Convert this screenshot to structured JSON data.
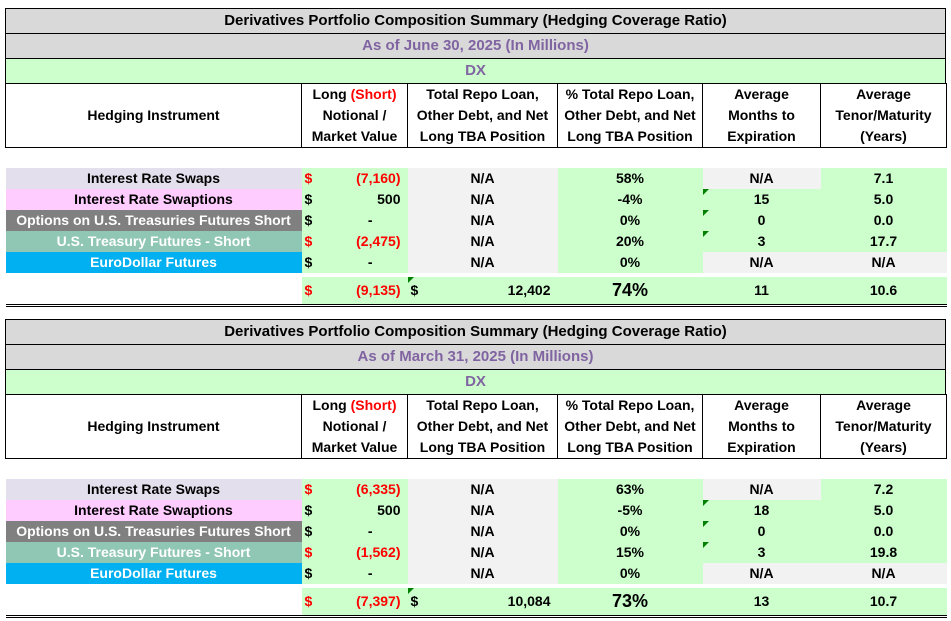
{
  "tables": [
    {
      "title": "Derivatives Portfolio Composition Summary (Hedging Coverage Ratio)",
      "as_of": "As of June 30, 2025 (In Millions)",
      "entity": "DX",
      "headers": {
        "instrument": "Hedging Instrument",
        "long_short_a": "Long ",
        "long_short_b": "(Short)",
        "notional_line2": "Notional /",
        "notional_line3": "Market Value",
        "repo_line1": "Total Repo Loan,",
        "repo_line2": "Other Debt, and Net",
        "repo_line3": "Long  TBA Position",
        "pct_line1": "% Total Repo Loan,",
        "pct_line2": "Other Debt, and Net",
        "pct_line3": "Long TBA Position",
        "months_line1": "Average",
        "months_line2": "Months to",
        "months_line3": "Expiration",
        "tenor_line1": "Average",
        "tenor_line2": "Tenor/Maturity",
        "tenor_line3": "(Years)"
      },
      "rows": [
        {
          "instrument": "Interest Rate Swaps",
          "currency": "$",
          "amount": "(7,160)",
          "repo": "N/A",
          "pct": "58%",
          "months": "N/A",
          "tenor": "7.1"
        },
        {
          "instrument": "Interest Rate Swaptions",
          "currency": "$",
          "amount": "500",
          "repo": "N/A",
          "pct": "-4%",
          "months": "15",
          "tenor": "5.0"
        },
        {
          "instrument": "Options on U.S. Treasuries Futures Short",
          "currency": "$",
          "amount": "-",
          "repo": "N/A",
          "pct": "0%",
          "months": "0",
          "tenor": "0.0"
        },
        {
          "instrument": "U.S. Treasury Futures - Short",
          "currency": "$",
          "amount": "(2,475)",
          "repo": "N/A",
          "pct": "20%",
          "months": "3",
          "tenor": "17.7"
        },
        {
          "instrument": "EuroDollar Futures",
          "currency": "$",
          "amount": "-",
          "repo": "N/A",
          "pct": "0%",
          "months": "N/A",
          "tenor": "N/A"
        }
      ],
      "total": {
        "currency": "$",
        "amount": "(9,135)",
        "repo_currency": "$",
        "repo": "12,402",
        "pct": "74%",
        "months": "11",
        "tenor": "10.6"
      }
    },
    {
      "title": "Derivatives Portfolio Composition Summary (Hedging Coverage Ratio)",
      "as_of": "As of March 31, 2025 (In Millions)",
      "entity": "DX",
      "headers": {
        "instrument": "Hedging Instrument",
        "long_short_a": "Long ",
        "long_short_b": "(Short)",
        "notional_line2": "Notional /",
        "notional_line3": "Market Value",
        "repo_line1": "Total Repo Loan,",
        "repo_line2": "Other Debt, and Net",
        "repo_line3": "Long  TBA Position",
        "pct_line1": "% Total Repo Loan,",
        "pct_line2": "Other Debt, and Net",
        "pct_line3": "Long TBA Position",
        "months_line1": "Average",
        "months_line2": "Months to",
        "months_line3": "Expiration",
        "tenor_line1": "Average",
        "tenor_line2": "Tenor/Maturity",
        "tenor_line3": "(Years)"
      },
      "rows": [
        {
          "instrument": "Interest Rate Swaps",
          "currency": "$",
          "amount": "(6,335)",
          "repo": "N/A",
          "pct": "63%",
          "months": "N/A",
          "tenor": "7.2"
        },
        {
          "instrument": "Interest Rate Swaptions",
          "currency": "$",
          "amount": "500",
          "repo": "N/A",
          "pct": "-5%",
          "months": "18",
          "tenor": "5.0"
        },
        {
          "instrument": "Options on U.S. Treasuries Futures Short",
          "currency": "$",
          "amount": "-",
          "repo": "N/A",
          "pct": "0%",
          "months": "0",
          "tenor": "0.0"
        },
        {
          "instrument": "U.S. Treasury Futures - Short",
          "currency": "$",
          "amount": "(1,562)",
          "repo": "N/A",
          "pct": "15%",
          "months": "3",
          "tenor": "19.8"
        },
        {
          "instrument": "EuroDollar Futures",
          "currency": "$",
          "amount": "-",
          "repo": "N/A",
          "pct": "0%",
          "months": "N/A",
          "tenor": "N/A"
        }
      ],
      "total": {
        "currency": "$",
        "amount": "(7,397)",
        "repo_currency": "$",
        "repo": "10,084",
        "pct": "73%",
        "months": "13",
        "tenor": "10.7"
      }
    }
  ]
}
